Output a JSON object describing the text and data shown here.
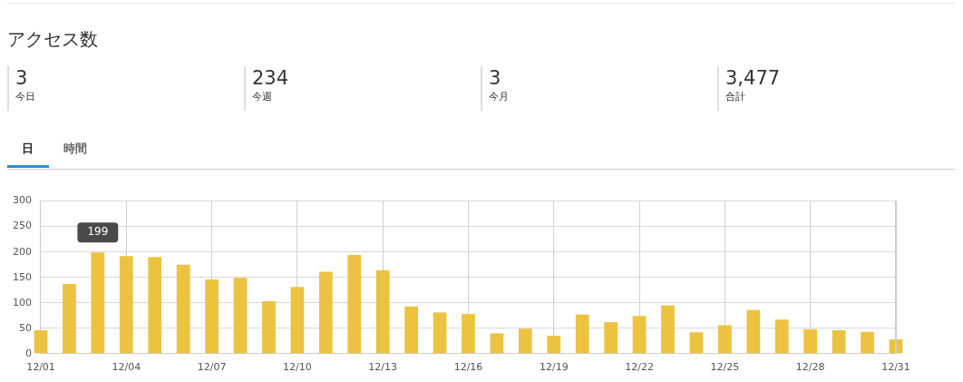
{
  "chart_data": [
    {
      "type": "other",
      "title": "アクセス数",
      "annotations": [
        "3",
        "今日",
        "234",
        "今週",
        "3",
        "今月",
        "3,477",
        "合計"
      ]
    },
    {
      "type": "bar",
      "annotations": [
        "日",
        "時間"
      ],
      "categories": [
        "12/01",
        null,
        null,
        "12/04",
        null,
        null,
        "12/07",
        null,
        null,
        "12/10",
        null,
        null,
        "12/13",
        null,
        null,
        "12/16",
        null,
        null,
        "12/19",
        null,
        null,
        "12/22",
        null,
        null,
        "12/25",
        null,
        null,
        "12/28",
        null,
        null,
        "12/31"
      ],
      "values": [
        46,
        137,
        199,
        192,
        190,
        175,
        146,
        149,
        103,
        131,
        161,
        194,
        164,
        93,
        81,
        78,
        40,
        49,
        35,
        77,
        62,
        74,
        95,
        42,
        56,
        86,
        67,
        48,
        46,
        43,
        28
      ],
      "value_labels": [
        null,
        null,
        "199",
        null,
        null,
        null,
        null,
        null,
        null,
        null,
        null,
        null,
        null,
        null,
        null,
        null,
        null,
        null,
        null,
        null,
        null,
        null,
        null,
        null,
        null,
        null,
        null,
        null,
        null,
        null,
        null
      ],
      "color": "#ecc340",
      "ylim": [
        0,
        300
      ],
      "yticks": [
        0,
        50,
        100,
        150,
        200,
        250,
        300
      ],
      "grid": true
    }
  ]
}
